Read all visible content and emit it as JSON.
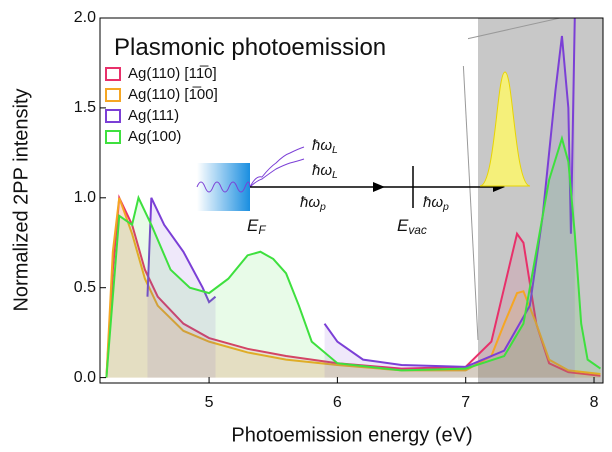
{
  "chart_data": {
    "type": "line",
    "xlabel": "Photoemission energy (eV)",
    "ylabel": "Normalized 2PP intensity",
    "xlim": [
      4.15,
      8.07
    ],
    "ylim": [
      -0.03,
      2.0
    ],
    "xticks": [
      5,
      6,
      7,
      8
    ],
    "yticks": [
      {
        "value": 0,
        "label": "0.0"
      },
      {
        "value": 0.5,
        "label": "0.5"
      },
      {
        "value": 1,
        "label": "1.0"
      },
      {
        "value": 1.5,
        "label": "1.5"
      },
      {
        "value": 2,
        "label": "2.0"
      }
    ],
    "legend_position": "upper left",
    "series": [
      {
        "name": "Ag(110)  [11̅0]",
        "color": "#e8306a",
        "x": [
          4.2,
          4.25,
          4.3,
          4.4,
          4.5,
          4.6,
          4.8,
          5.0,
          5.3,
          5.6,
          6.0,
          6.5,
          7.0,
          7.2,
          7.3,
          7.4,
          7.45,
          7.55,
          7.65,
          7.8,
          8.05
        ],
        "values": [
          0,
          0.6,
          1.0,
          0.85,
          0.6,
          0.45,
          0.3,
          0.22,
          0.16,
          0.12,
          0.08,
          0.05,
          0.06,
          0.2,
          0.5,
          0.8,
          0.75,
          0.3,
          0.08,
          0.03,
          0.01
        ]
      },
      {
        "name": "Ag(110)  [1̅00]",
        "color": "#f5a623",
        "x": [
          4.2,
          4.25,
          4.3,
          4.4,
          4.5,
          4.6,
          4.8,
          5.0,
          5.3,
          5.6,
          6.0,
          6.5,
          7.0,
          7.2,
          7.3,
          7.4,
          7.45,
          7.55,
          7.65,
          7.8,
          8.05
        ],
        "values": [
          0,
          0.7,
          1.0,
          0.8,
          0.55,
          0.4,
          0.26,
          0.2,
          0.14,
          0.1,
          0.07,
          0.04,
          0.04,
          0.12,
          0.3,
          0.47,
          0.48,
          0.3,
          0.1,
          0.04,
          0.02
        ]
      },
      {
        "name": "Ag(111)",
        "color": "#7b3fd6",
        "x": [
          4.52,
          4.55,
          4.65,
          4.8,
          4.95,
          5.0,
          5.05,
          5.8,
          5.9,
          6.0,
          6.2,
          6.5,
          7.0,
          7.3,
          7.5,
          7.6,
          7.7,
          7.75,
          7.8,
          7.82,
          7.85
        ],
        "values": [
          0.45,
          1.0,
          0.85,
          0.7,
          0.5,
          0.42,
          0.45,
          null,
          0.3,
          0.2,
          0.1,
          0.07,
          0.06,
          0.15,
          0.4,
          0.9,
          1.6,
          1.9,
          1.5,
          0.8,
          2.0
        ]
      },
      {
        "name": "Ag(100)",
        "color": "#3ee03e",
        "x": [
          4.2,
          4.3,
          4.4,
          4.45,
          4.55,
          4.7,
          4.85,
          5.0,
          5.15,
          5.3,
          5.4,
          5.5,
          5.6,
          5.7,
          5.8,
          6.0,
          6.5,
          7.0,
          7.3,
          7.45,
          7.55,
          7.65,
          7.75,
          7.8,
          7.85,
          7.9,
          7.95,
          8.05
        ],
        "values": [
          0,
          0.9,
          0.85,
          1.0,
          0.85,
          0.6,
          0.5,
          0.47,
          0.55,
          0.68,
          0.7,
          0.66,
          0.58,
          0.4,
          0.2,
          0.08,
          0.04,
          0.05,
          0.12,
          0.3,
          0.7,
          1.1,
          1.33,
          1.2,
          0.8,
          0.3,
          0.1,
          0.05
        ]
      }
    ],
    "annotations": [
      {
        "text": "Plasmonic photoemission"
      },
      {
        "text": "ħω",
        "sub": "L"
      },
      {
        "text": "ħω",
        "sub": "L"
      },
      {
        "text": "ħω",
        "sub": "p"
      },
      {
        "text": "ħω",
        "sub": "p"
      },
      {
        "text": "E",
        "sub": "F"
      },
      {
        "text": "E",
        "sub": "vac"
      }
    ]
  }
}
